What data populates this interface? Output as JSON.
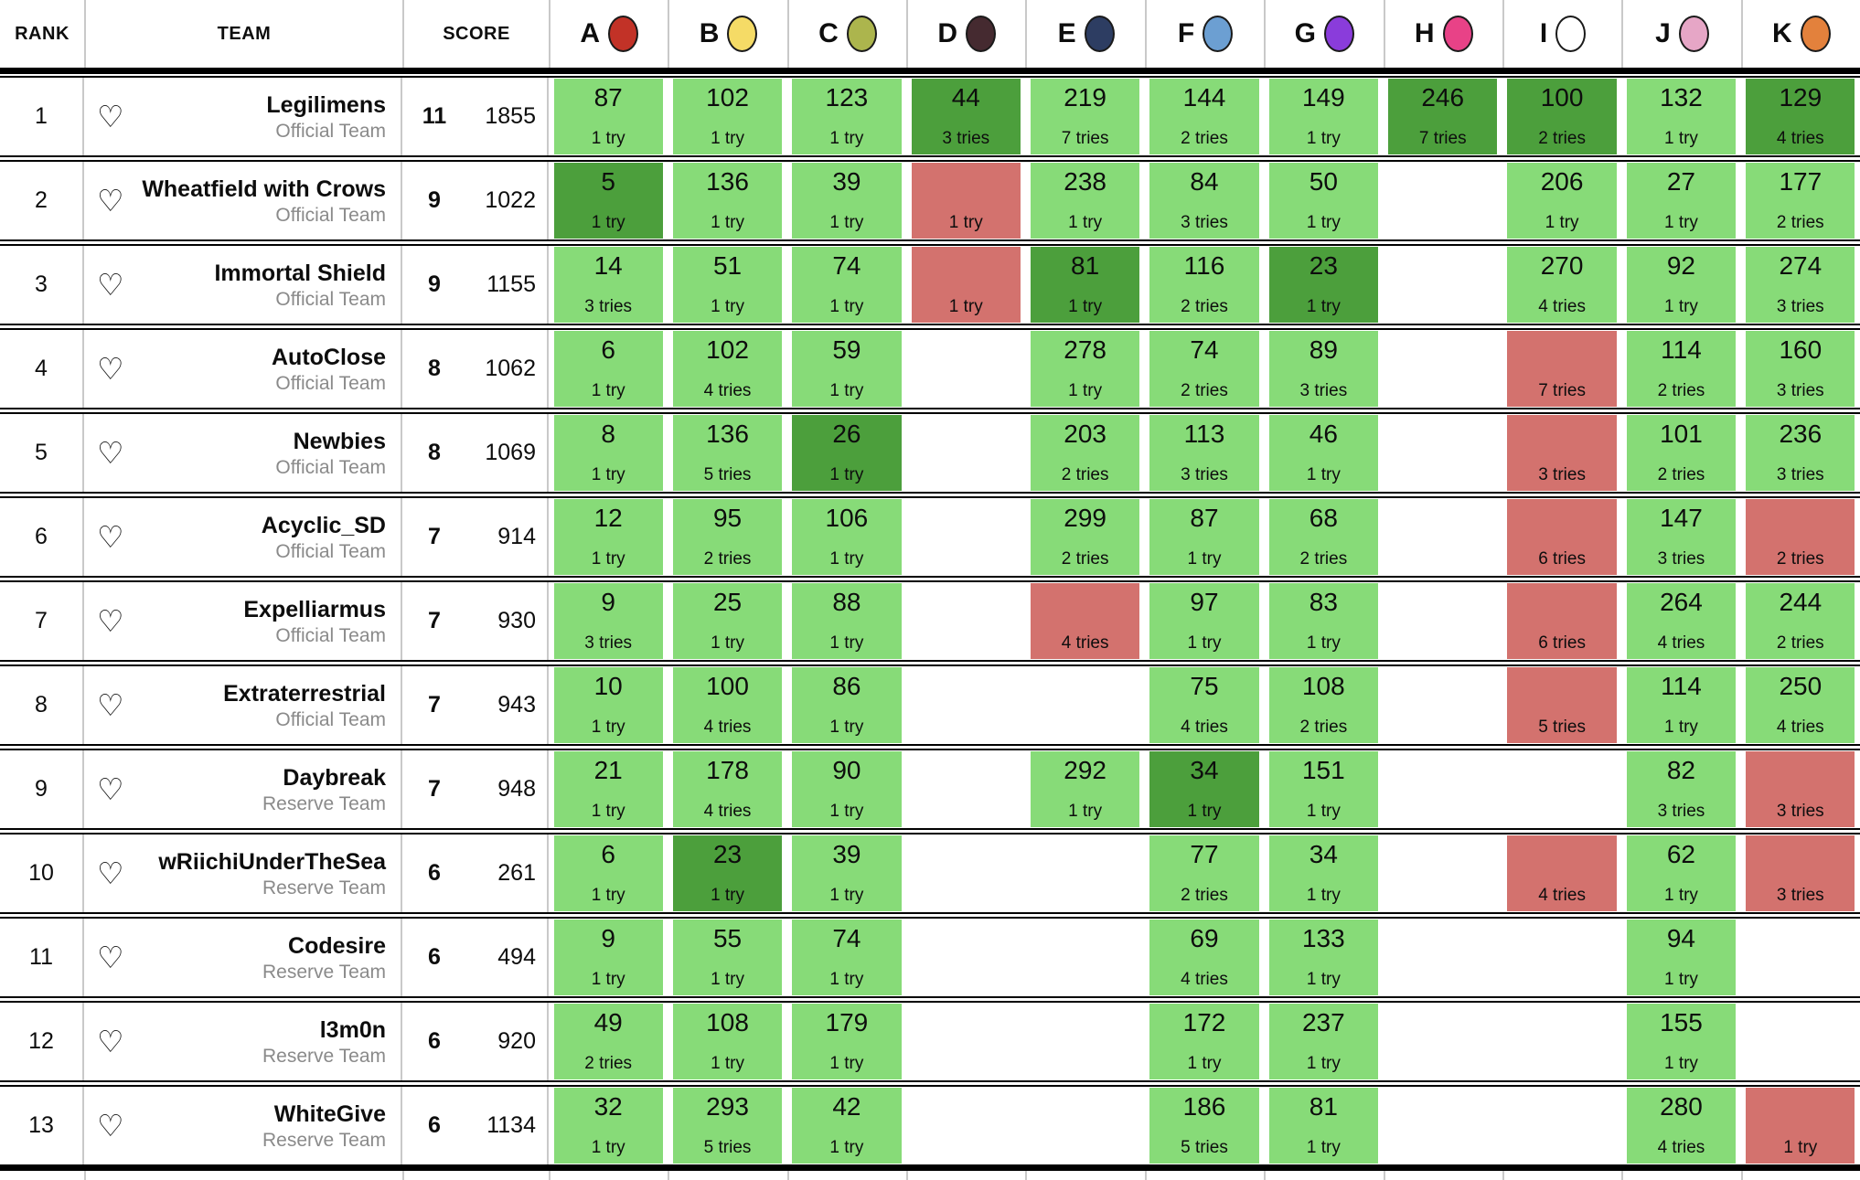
{
  "header": {
    "rank_label": "RANK",
    "team_label": "TEAM",
    "score_label": "SCORE",
    "problems": [
      {
        "label": "A",
        "balloon_color": "#C23227"
      },
      {
        "label": "B",
        "balloon_color": "#F5DB66"
      },
      {
        "label": "C",
        "balloon_color": "#ACB54D"
      },
      {
        "label": "D",
        "balloon_color": "#452A30"
      },
      {
        "label": "E",
        "balloon_color": "#2D3D62"
      },
      {
        "label": "F",
        "balloon_color": "#6C9FD2"
      },
      {
        "label": "G",
        "balloon_color": "#8A3CDB"
      },
      {
        "label": "H",
        "balloon_color": "#E84287"
      },
      {
        "label": "I",
        "balloon_color": "#FFFFFF"
      },
      {
        "label": "J",
        "balloon_color": "#E6A6C6"
      },
      {
        "label": "K",
        "balloon_color": "#E3813C"
      }
    ]
  },
  "icons": {
    "heart": "♡"
  },
  "colors": {
    "solved": "#87DB78",
    "first_to_solve": "#4C9F3C",
    "failed": "#D3726E",
    "row_divider": "#000000",
    "column_divider": "#c9c9c9",
    "category_text": "#8a8a8a"
  },
  "teams": [
    {
      "rank": "1",
      "name": "Legilimens",
      "category": "Official Team",
      "solved": "11",
      "penalty": "1855",
      "cells": [
        {
          "state": "solved",
          "time": "87",
          "tries": "1 try"
        },
        {
          "state": "solved",
          "time": "102",
          "tries": "1 try"
        },
        {
          "state": "solved",
          "time": "123",
          "tries": "1 try"
        },
        {
          "state": "first",
          "time": "44",
          "tries": "3 tries"
        },
        {
          "state": "solved",
          "time": "219",
          "tries": "7 tries"
        },
        {
          "state": "solved",
          "time": "144",
          "tries": "2 tries"
        },
        {
          "state": "solved",
          "time": "149",
          "tries": "1 try"
        },
        {
          "state": "first",
          "time": "246",
          "tries": "7 tries"
        },
        {
          "state": "first",
          "time": "100",
          "tries": "2 tries"
        },
        {
          "state": "solved",
          "time": "132",
          "tries": "1 try"
        },
        {
          "state": "first",
          "time": "129",
          "tries": "4 tries"
        }
      ]
    },
    {
      "rank": "2",
      "name": "Wheatfield with Crows",
      "category": "Official Team",
      "solved": "9",
      "penalty": "1022",
      "cells": [
        {
          "state": "first",
          "time": "5",
          "tries": "1 try"
        },
        {
          "state": "solved",
          "time": "136",
          "tries": "1 try"
        },
        {
          "state": "solved",
          "time": "39",
          "tries": "1 try"
        },
        {
          "state": "failed",
          "tries": "1 try"
        },
        {
          "state": "solved",
          "time": "238",
          "tries": "1 try"
        },
        {
          "state": "solved",
          "time": "84",
          "tries": "3 tries"
        },
        {
          "state": "solved",
          "time": "50",
          "tries": "1 try"
        },
        {
          "state": "empty"
        },
        {
          "state": "solved",
          "time": "206",
          "tries": "1 try"
        },
        {
          "state": "solved",
          "time": "27",
          "tries": "1 try"
        },
        {
          "state": "solved",
          "time": "177",
          "tries": "2 tries"
        }
      ]
    },
    {
      "rank": "3",
      "name": "Immortal Shield",
      "category": "Official Team",
      "solved": "9",
      "penalty": "1155",
      "cells": [
        {
          "state": "solved",
          "time": "14",
          "tries": "3 tries"
        },
        {
          "state": "solved",
          "time": "51",
          "tries": "1 try"
        },
        {
          "state": "solved",
          "time": "74",
          "tries": "1 try"
        },
        {
          "state": "failed",
          "tries": "1 try"
        },
        {
          "state": "first",
          "time": "81",
          "tries": "1 try"
        },
        {
          "state": "solved",
          "time": "116",
          "tries": "2 tries"
        },
        {
          "state": "first",
          "time": "23",
          "tries": "1 try"
        },
        {
          "state": "empty"
        },
        {
          "state": "solved",
          "time": "270",
          "tries": "4 tries"
        },
        {
          "state": "solved",
          "time": "92",
          "tries": "1 try"
        },
        {
          "state": "solved",
          "time": "274",
          "tries": "3 tries"
        }
      ]
    },
    {
      "rank": "4",
      "name": "AutoClose",
      "category": "Official Team",
      "solved": "8",
      "penalty": "1062",
      "cells": [
        {
          "state": "solved",
          "time": "6",
          "tries": "1 try"
        },
        {
          "state": "solved",
          "time": "102",
          "tries": "4 tries"
        },
        {
          "state": "solved",
          "time": "59",
          "tries": "1 try"
        },
        {
          "state": "empty"
        },
        {
          "state": "solved",
          "time": "278",
          "tries": "1 try"
        },
        {
          "state": "solved",
          "time": "74",
          "tries": "2 tries"
        },
        {
          "state": "solved",
          "time": "89",
          "tries": "3 tries"
        },
        {
          "state": "empty"
        },
        {
          "state": "failed",
          "tries": "7 tries"
        },
        {
          "state": "solved",
          "time": "114",
          "tries": "2 tries"
        },
        {
          "state": "solved",
          "time": "160",
          "tries": "3 tries"
        }
      ]
    },
    {
      "rank": "5",
      "name": "Newbies",
      "category": "Official Team",
      "solved": "8",
      "penalty": "1069",
      "cells": [
        {
          "state": "solved",
          "time": "8",
          "tries": "1 try"
        },
        {
          "state": "solved",
          "time": "136",
          "tries": "5 tries"
        },
        {
          "state": "first",
          "time": "26",
          "tries": "1 try"
        },
        {
          "state": "empty"
        },
        {
          "state": "solved",
          "time": "203",
          "tries": "2 tries"
        },
        {
          "state": "solved",
          "time": "113",
          "tries": "3 tries"
        },
        {
          "state": "solved",
          "time": "46",
          "tries": "1 try"
        },
        {
          "state": "empty"
        },
        {
          "state": "failed",
          "tries": "3 tries"
        },
        {
          "state": "solved",
          "time": "101",
          "tries": "2 tries"
        },
        {
          "state": "solved",
          "time": "236",
          "tries": "3 tries"
        }
      ]
    },
    {
      "rank": "6",
      "name": "Acyclic_SD",
      "category": "Official Team",
      "solved": "7",
      "penalty": "914",
      "cells": [
        {
          "state": "solved",
          "time": "12",
          "tries": "1 try"
        },
        {
          "state": "solved",
          "time": "95",
          "tries": "2 tries"
        },
        {
          "state": "solved",
          "time": "106",
          "tries": "1 try"
        },
        {
          "state": "empty"
        },
        {
          "state": "solved",
          "time": "299",
          "tries": "2 tries"
        },
        {
          "state": "solved",
          "time": "87",
          "tries": "1 try"
        },
        {
          "state": "solved",
          "time": "68",
          "tries": "2 tries"
        },
        {
          "state": "empty"
        },
        {
          "state": "failed",
          "tries": "6 tries"
        },
        {
          "state": "solved",
          "time": "147",
          "tries": "3 tries"
        },
        {
          "state": "failed",
          "tries": "2 tries"
        }
      ]
    },
    {
      "rank": "7",
      "name": "Expelliarmus",
      "category": "Official Team",
      "solved": "7",
      "penalty": "930",
      "cells": [
        {
          "state": "solved",
          "time": "9",
          "tries": "3 tries"
        },
        {
          "state": "solved",
          "time": "25",
          "tries": "1 try"
        },
        {
          "state": "solved",
          "time": "88",
          "tries": "1 try"
        },
        {
          "state": "empty"
        },
        {
          "state": "failed",
          "tries": "4 tries"
        },
        {
          "state": "solved",
          "time": "97",
          "tries": "1 try"
        },
        {
          "state": "solved",
          "time": "83",
          "tries": "1 try"
        },
        {
          "state": "empty"
        },
        {
          "state": "failed",
          "tries": "6 tries"
        },
        {
          "state": "solved",
          "time": "264",
          "tries": "4 tries"
        },
        {
          "state": "solved",
          "time": "244",
          "tries": "2 tries"
        }
      ]
    },
    {
      "rank": "8",
      "name": "Extraterrestrial",
      "category": "Official Team",
      "solved": "7",
      "penalty": "943",
      "cells": [
        {
          "state": "solved",
          "time": "10",
          "tries": "1 try"
        },
        {
          "state": "solved",
          "time": "100",
          "tries": "4 tries"
        },
        {
          "state": "solved",
          "time": "86",
          "tries": "1 try"
        },
        {
          "state": "empty"
        },
        {
          "state": "empty"
        },
        {
          "state": "solved",
          "time": "75",
          "tries": "4 tries"
        },
        {
          "state": "solved",
          "time": "108",
          "tries": "2 tries"
        },
        {
          "state": "empty"
        },
        {
          "state": "failed",
          "tries": "5 tries"
        },
        {
          "state": "solved",
          "time": "114",
          "tries": "1 try"
        },
        {
          "state": "solved",
          "time": "250",
          "tries": "4 tries"
        }
      ]
    },
    {
      "rank": "9",
      "name": "Daybreak",
      "category": "Reserve Team",
      "solved": "7",
      "penalty": "948",
      "cells": [
        {
          "state": "solved",
          "time": "21",
          "tries": "1 try"
        },
        {
          "state": "solved",
          "time": "178",
          "tries": "4 tries"
        },
        {
          "state": "solved",
          "time": "90",
          "tries": "1 try"
        },
        {
          "state": "empty"
        },
        {
          "state": "solved",
          "time": "292",
          "tries": "1 try"
        },
        {
          "state": "first",
          "time": "34",
          "tries": "1 try"
        },
        {
          "state": "solved",
          "time": "151",
          "tries": "1 try"
        },
        {
          "state": "empty"
        },
        {
          "state": "empty"
        },
        {
          "state": "solved",
          "time": "82",
          "tries": "3 tries"
        },
        {
          "state": "failed",
          "tries": "3 tries"
        }
      ]
    },
    {
      "rank": "10",
      "name": "wRiichiUnderTheSea",
      "category": "Reserve Team",
      "solved": "6",
      "penalty": "261",
      "cells": [
        {
          "state": "solved",
          "time": "6",
          "tries": "1 try"
        },
        {
          "state": "first",
          "time": "23",
          "tries": "1 try"
        },
        {
          "state": "solved",
          "time": "39",
          "tries": "1 try"
        },
        {
          "state": "empty"
        },
        {
          "state": "empty"
        },
        {
          "state": "solved",
          "time": "77",
          "tries": "2 tries"
        },
        {
          "state": "solved",
          "time": "34",
          "tries": "1 try"
        },
        {
          "state": "empty"
        },
        {
          "state": "failed",
          "tries": "4 tries"
        },
        {
          "state": "solved",
          "time": "62",
          "tries": "1 try"
        },
        {
          "state": "failed",
          "tries": "3 tries"
        }
      ]
    },
    {
      "rank": "11",
      "name": "Codesire",
      "category": "Reserve Team",
      "solved": "6",
      "penalty": "494",
      "cells": [
        {
          "state": "solved",
          "time": "9",
          "tries": "1 try"
        },
        {
          "state": "solved",
          "time": "55",
          "tries": "1 try"
        },
        {
          "state": "solved",
          "time": "74",
          "tries": "1 try"
        },
        {
          "state": "empty"
        },
        {
          "state": "empty"
        },
        {
          "state": "solved",
          "time": "69",
          "tries": "4 tries"
        },
        {
          "state": "solved",
          "time": "133",
          "tries": "1 try"
        },
        {
          "state": "empty"
        },
        {
          "state": "empty"
        },
        {
          "state": "solved",
          "time": "94",
          "tries": "1 try"
        },
        {
          "state": "empty"
        }
      ]
    },
    {
      "rank": "12",
      "name": "l3m0n",
      "category": "Reserve Team",
      "solved": "6",
      "penalty": "920",
      "cells": [
        {
          "state": "solved",
          "time": "49",
          "tries": "2 tries"
        },
        {
          "state": "solved",
          "time": "108",
          "tries": "1 try"
        },
        {
          "state": "solved",
          "time": "179",
          "tries": "1 try"
        },
        {
          "state": "empty"
        },
        {
          "state": "empty"
        },
        {
          "state": "solved",
          "time": "172",
          "tries": "1 try"
        },
        {
          "state": "solved",
          "time": "237",
          "tries": "1 try"
        },
        {
          "state": "empty"
        },
        {
          "state": "empty"
        },
        {
          "state": "solved",
          "time": "155",
          "tries": "1 try"
        },
        {
          "state": "empty"
        }
      ]
    },
    {
      "rank": "13",
      "name": "WhiteGive",
      "category": "Reserve Team",
      "solved": "6",
      "penalty": "1134",
      "cells": [
        {
          "state": "solved",
          "time": "32",
          "tries": "1 try"
        },
        {
          "state": "solved",
          "time": "293",
          "tries": "5 tries"
        },
        {
          "state": "solved",
          "time": "42",
          "tries": "1 try"
        },
        {
          "state": "empty"
        },
        {
          "state": "empty"
        },
        {
          "state": "solved",
          "time": "186",
          "tries": "5 tries"
        },
        {
          "state": "solved",
          "time": "81",
          "tries": "1 try"
        },
        {
          "state": "empty"
        },
        {
          "state": "empty"
        },
        {
          "state": "solved",
          "time": "280",
          "tries": "4 tries"
        },
        {
          "state": "failed",
          "tries": "1 try"
        }
      ]
    }
  ]
}
